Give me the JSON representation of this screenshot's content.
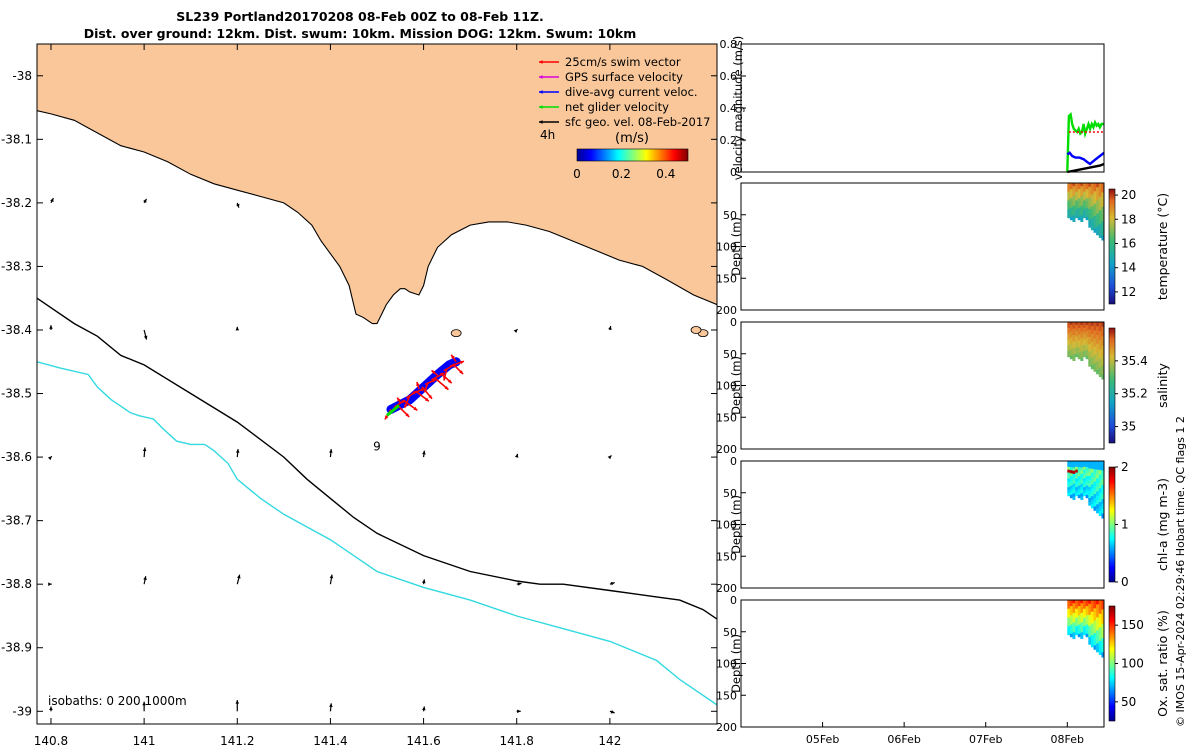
{
  "header": {
    "title_line1": "SL239 Portland20170208 08-Feb 00Z to 08-Feb 11Z.",
    "title_line2": "Dist. over ground: 12km. Dist. swum: 10km. Mission DOG: 12km. Swum: 10km"
  },
  "credit": "© IMOS 15-Apr-2024 02:29:46 Hobart time. QC flags 1  2",
  "colors": {
    "land": "#f9c79a",
    "isobath_200": "#000000",
    "isobath_1000": "#33d9e0",
    "swim": "#ff0000",
    "gps": "#dd00dd",
    "dive_avg": "#0000ff",
    "net": "#00dd00",
    "sfc_geo": "#000000"
  },
  "chart_data": [
    {
      "type": "scatter",
      "name": "map",
      "xlim": [
        140.77,
        142.23
      ],
      "ylim": [
        -39.02,
        -37.95
      ],
      "xticks": [
        140.8,
        141,
        141.2,
        141.4,
        141.6,
        141.8,
        142
      ],
      "xtick_labels": [
        "140.8",
        "141",
        "141.2",
        "141.4",
        "141.6",
        "141.8",
        "142"
      ],
      "yticks": [
        -38,
        -38.1,
        -38.2,
        -38.3,
        -38.4,
        -38.5,
        -38.6,
        -38.7,
        -38.8,
        -38.9,
        -39
      ],
      "ytick_labels": [
        "-38",
        "-38.1",
        "-38.2",
        "-38.3",
        "-38.4",
        "-38.5",
        "-38.6",
        "-38.7",
        "-38.8",
        "-38.9",
        "-39"
      ],
      "legend": [
        {
          "label": "25cm/s swim vector",
          "color": "#ff0000"
        },
        {
          "label": "GPS surface velocity",
          "color": "#dd00dd"
        },
        {
          "label": "dive-avg current veloc.",
          "color": "#0000ff"
        },
        {
          "label": "net glider velocity",
          "color": "#00dd00"
        },
        {
          "label": "sfc geo. vel. 08-Feb-2017",
          "color": "#000000"
        }
      ],
      "legend_position": "top-right",
      "colorbar": {
        "title": "(m/s)",
        "side_label": "4h",
        "ticks": [
          "0",
          "0.2",
          "0.4"
        ],
        "range": [
          0,
          0.5
        ]
      },
      "annotation": "9",
      "isobaths_label": "isobaths: 0   200   1000m",
      "coastline": [
        [
          140.77,
          -38.055
        ],
        [
          140.8,
          -38.06
        ],
        [
          140.85,
          -38.07
        ],
        [
          140.9,
          -38.09
        ],
        [
          140.95,
          -38.11
        ],
        [
          141.0,
          -38.12
        ],
        [
          141.05,
          -38.135
        ],
        [
          141.1,
          -38.155
        ],
        [
          141.15,
          -38.17
        ],
        [
          141.2,
          -38.18
        ],
        [
          141.25,
          -38.19
        ],
        [
          141.3,
          -38.2
        ],
        [
          141.33,
          -38.215
        ],
        [
          141.36,
          -38.235
        ],
        [
          141.38,
          -38.26
        ],
        [
          141.4,
          -38.28
        ],
        [
          141.42,
          -38.3
        ],
        [
          141.44,
          -38.33
        ],
        [
          141.45,
          -38.36
        ],
        [
          141.455,
          -38.375
        ],
        [
          141.47,
          -38.38
        ],
        [
          141.48,
          -38.385
        ],
        [
          141.49,
          -38.39
        ],
        [
          141.5,
          -38.39
        ],
        [
          141.51,
          -38.375
        ],
        [
          141.52,
          -38.36
        ],
        [
          141.535,
          -38.345
        ],
        [
          141.55,
          -38.335
        ],
        [
          141.56,
          -38.335
        ],
        [
          141.57,
          -38.34
        ],
        [
          141.59,
          -38.345
        ],
        [
          141.6,
          -38.33
        ],
        [
          141.61,
          -38.3
        ],
        [
          141.63,
          -38.27
        ],
        [
          141.66,
          -38.25
        ],
        [
          141.7,
          -38.235
        ],
        [
          141.74,
          -38.23
        ],
        [
          141.78,
          -38.23
        ],
        [
          141.82,
          -38.235
        ],
        [
          141.87,
          -38.245
        ],
        [
          141.92,
          -38.26
        ],
        [
          141.97,
          -38.275
        ],
        [
          142.02,
          -38.29
        ],
        [
          142.07,
          -38.3
        ],
        [
          142.12,
          -38.32
        ],
        [
          142.18,
          -38.345
        ],
        [
          142.23,
          -38.36
        ]
      ],
      "isobath_200": [
        [
          140.77,
          -38.35
        ],
        [
          140.85,
          -38.39
        ],
        [
          140.9,
          -38.41
        ],
        [
          140.95,
          -38.44
        ],
        [
          141.0,
          -38.455
        ],
        [
          141.1,
          -38.5
        ],
        [
          141.2,
          -38.545
        ],
        [
          141.3,
          -38.6
        ],
        [
          141.35,
          -38.635
        ],
        [
          141.4,
          -38.665
        ],
        [
          141.45,
          -38.695
        ],
        [
          141.5,
          -38.72
        ],
        [
          141.6,
          -38.755
        ],
        [
          141.7,
          -38.78
        ],
        [
          141.8,
          -38.795
        ],
        [
          141.85,
          -38.8
        ],
        [
          141.9,
          -38.8
        ],
        [
          142.0,
          -38.81
        ],
        [
          142.05,
          -38.815
        ],
        [
          142.1,
          -38.82
        ],
        [
          142.15,
          -38.825
        ],
        [
          142.2,
          -38.84
        ],
        [
          142.23,
          -38.855
        ]
      ],
      "isobath_1000": [
        [
          140.77,
          -38.45
        ],
        [
          140.82,
          -38.46
        ],
        [
          140.88,
          -38.47
        ],
        [
          140.9,
          -38.49
        ],
        [
          140.93,
          -38.51
        ],
        [
          140.95,
          -38.52
        ],
        [
          140.97,
          -38.53
        ],
        [
          140.99,
          -38.535
        ],
        [
          141.02,
          -38.54
        ],
        [
          141.04,
          -38.555
        ],
        [
          141.07,
          -38.575
        ],
        [
          141.1,
          -38.58
        ],
        [
          141.13,
          -38.58
        ],
        [
          141.15,
          -38.59
        ],
        [
          141.18,
          -38.61
        ],
        [
          141.2,
          -38.635
        ],
        [
          141.25,
          -38.665
        ],
        [
          141.3,
          -38.69
        ],
        [
          141.35,
          -38.71
        ],
        [
          141.4,
          -38.73
        ],
        [
          141.45,
          -38.755
        ],
        [
          141.5,
          -38.78
        ],
        [
          141.6,
          -38.805
        ],
        [
          141.7,
          -38.825
        ],
        [
          141.8,
          -38.85
        ],
        [
          141.9,
          -38.87
        ],
        [
          142.0,
          -38.89
        ],
        [
          142.1,
          -38.92
        ],
        [
          142.15,
          -38.95
        ],
        [
          142.23,
          -38.99
        ]
      ],
      "glider_track": [
        [
          141.53,
          -38.525
        ],
        [
          141.57,
          -38.51
        ],
        [
          141.6,
          -38.49
        ],
        [
          141.63,
          -38.47
        ],
        [
          141.655,
          -38.455
        ],
        [
          141.67,
          -38.45
        ]
      ],
      "islands": [
        [
          142.2,
          -38.405
        ],
        [
          142.185,
          -38.4
        ],
        [
          141.67,
          -38.405
        ]
      ],
      "geo_vectors": [
        {
          "lon": 140.8,
          "lat": -38.2,
          "u": 0.03,
          "v": 0.06
        },
        {
          "lon": 141.0,
          "lat": -38.2,
          "u": 0.03,
          "v": 0.05
        },
        {
          "lon": 141.2,
          "lat": -38.2,
          "u": 0.02,
          "v": -0.06
        },
        {
          "lon": 140.8,
          "lat": -38.4,
          "u": 0.0,
          "v": 0.06
        },
        {
          "lon": 141.0,
          "lat": -38.4,
          "u": 0.03,
          "v": -0.12
        },
        {
          "lon": 141.2,
          "lat": -38.4,
          "u": 0.0,
          "v": 0.04
        },
        {
          "lon": 141.8,
          "lat": -38.4,
          "u": 0.01,
          "v": 0.01
        },
        {
          "lon": 142.0,
          "lat": -38.4,
          "u": 0.01,
          "v": 0.05
        },
        {
          "lon": 140.8,
          "lat": -38.6,
          "u": 0.01,
          "v": 0.01
        },
        {
          "lon": 141.0,
          "lat": -38.6,
          "u": 0.01,
          "v": 0.12
        },
        {
          "lon": 141.2,
          "lat": -38.6,
          "u": 0.01,
          "v": 0.1
        },
        {
          "lon": 141.4,
          "lat": -38.6,
          "u": 0.01,
          "v": 0.1
        },
        {
          "lon": 141.6,
          "lat": -38.6,
          "u": 0.01,
          "v": 0.08
        },
        {
          "lon": 141.8,
          "lat": -38.6,
          "u": 0.01,
          "v": 0.04
        },
        {
          "lon": 142.0,
          "lat": -38.6,
          "u": 0.02,
          "v": 0.02
        },
        {
          "lon": 140.8,
          "lat": -38.8,
          "u": 0.01,
          "v": 0.0
        },
        {
          "lon": 141.0,
          "lat": -38.8,
          "u": 0.02,
          "v": 0.1
        },
        {
          "lon": 141.2,
          "lat": -38.8,
          "u": 0.03,
          "v": 0.12
        },
        {
          "lon": 141.4,
          "lat": -38.8,
          "u": 0.02,
          "v": 0.12
        },
        {
          "lon": 141.6,
          "lat": -38.8,
          "u": 0.01,
          "v": 0.06
        },
        {
          "lon": 141.8,
          "lat": -38.8,
          "u": 0.06,
          "v": 0.01
        },
        {
          "lon": 142.0,
          "lat": -38.8,
          "u": 0.06,
          "v": 0.02
        },
        {
          "lon": 140.8,
          "lat": -39.0,
          "u": 0.0,
          "v": 0.06
        },
        {
          "lon": 141.0,
          "lat": -39.0,
          "u": 0.0,
          "v": 0.12
        },
        {
          "lon": 141.2,
          "lat": -39.0,
          "u": 0.0,
          "v": 0.14
        },
        {
          "lon": 141.4,
          "lat": -39.0,
          "u": 0.01,
          "v": 0.1
        },
        {
          "lon": 141.6,
          "lat": -39.0,
          "u": 0.01,
          "v": 0.06
        },
        {
          "lon": 141.8,
          "lat": -39.0,
          "u": 0.05,
          "v": 0.0
        },
        {
          "lon": 142.0,
          "lat": -39.0,
          "u": 0.06,
          "v": -0.02
        }
      ]
    },
    {
      "type": "line",
      "name": "velocity",
      "ylabel": "velocity magnitude (m/s)",
      "ylim": [
        0,
        0.8
      ],
      "yticks": [
        0,
        0.2,
        0.4,
        0.6,
        0.8
      ],
      "ytick_labels": [
        "0",
        "0.2",
        "0.4",
        "0.6",
        "0.8"
      ],
      "xlim": [
        4.0,
        8.45
      ],
      "series": [
        {
          "color": "#00dd00",
          "x": [
            8.0,
            8.02,
            8.04,
            8.06,
            8.08,
            8.1,
            8.12,
            8.14,
            8.16,
            8.18,
            8.2,
            8.22,
            8.24,
            8.26,
            8.28,
            8.3,
            8.32,
            8.34,
            8.36,
            8.38,
            8.4,
            8.42,
            8.45
          ],
          "y": [
            0.0,
            0.35,
            0.36,
            0.3,
            0.27,
            0.26,
            0.25,
            0.27,
            0.24,
            0.25,
            0.3,
            0.24,
            0.27,
            0.3,
            0.27,
            0.3,
            0.28,
            0.31,
            0.29,
            0.3,
            0.28,
            0.3,
            0.3
          ]
        },
        {
          "color": "#ff0000",
          "x": [
            8.02,
            8.1,
            8.2,
            8.3,
            8.4,
            8.45
          ],
          "y": [
            0.25,
            0.25,
            0.25,
            0.25,
            0.25,
            0.25
          ]
        },
        {
          "color": "#0000ff",
          "x": [
            8.0,
            8.03,
            8.06,
            8.1,
            8.15,
            8.2,
            8.25,
            8.28,
            8.3,
            8.35,
            8.4,
            8.45
          ],
          "y": [
            0.11,
            0.12,
            0.1,
            0.09,
            0.09,
            0.08,
            0.06,
            0.05,
            0.06,
            0.08,
            0.1,
            0.12
          ]
        },
        {
          "color": "#000000",
          "x": [
            8.0,
            8.1,
            8.2,
            8.3,
            8.4,
            8.45
          ],
          "y": [
            0.0,
            0.01,
            0.02,
            0.03,
            0.04,
            0.05
          ]
        }
      ]
    },
    {
      "type": "heatmap",
      "name": "temperature",
      "ylabel": "Depth (m)",
      "colorbar_label": "temperature (°C)",
      "yticks": [
        50,
        100,
        150,
        200
      ],
      "ytick_labels": [
        "50",
        "100",
        "150",
        "200"
      ],
      "cbar_range": [
        11,
        20.5
      ],
      "cbar_ticks": [
        12,
        14,
        16,
        18,
        20
      ],
      "cbar_tick_labels": [
        "12",
        "14",
        "16",
        "18",
        "20"
      ],
      "data_x": [
        8.0,
        8.45
      ],
      "data_depth": [
        0,
        95
      ]
    },
    {
      "type": "heatmap",
      "name": "salinity",
      "ylabel": "Depth (m)",
      "colorbar_label": "salinity",
      "yticks": [
        0,
        50,
        100,
        150,
        200
      ],
      "ytick_labels": [
        "0",
        "50",
        "100",
        "150",
        "200"
      ],
      "cbar_range": [
        34.9,
        35.6
      ],
      "cbar_ticks": [
        35,
        35.2,
        35.4
      ],
      "cbar_tick_labels": [
        "35",
        "35.2",
        "35.4"
      ],
      "data_x": [
        8.0,
        8.45
      ],
      "data_depth": [
        0,
        95
      ]
    },
    {
      "type": "heatmap",
      "name": "chlorophyll",
      "ylabel": "Depth (m)",
      "colorbar_label": "chl-a (mg m-3)",
      "yticks": [
        0,
        50,
        100,
        150,
        200
      ],
      "ytick_labels": [
        "0",
        "50",
        "100",
        "150",
        "200"
      ],
      "cbar_range": [
        0,
        2
      ],
      "cbar_ticks": [
        0,
        1,
        2
      ],
      "cbar_tick_labels": [
        "0",
        "1",
        "2"
      ],
      "data_x": [
        8.0,
        8.45
      ],
      "data_depth": [
        0,
        95
      ]
    },
    {
      "type": "heatmap",
      "name": "oxygen",
      "ylabel": "Depth (m)",
      "colorbar_label": "Ox. sat. ratio (%)",
      "yticks": [
        0,
        50,
        100,
        150,
        200
      ],
      "ytick_labels": [
        "0",
        "50",
        "100",
        "150",
        "200"
      ],
      "xticks": [
        5,
        6,
        7,
        8
      ],
      "xtick_labels": [
        "05Feb",
        "06Feb",
        "07Feb",
        "08Feb"
      ],
      "cbar_range": [
        25,
        175
      ],
      "cbar_ticks": [
        50,
        100,
        150
      ],
      "cbar_tick_labels": [
        "50",
        "100",
        "150"
      ],
      "data_x": [
        8.0,
        8.45
      ],
      "data_depth": [
        0,
        95
      ]
    }
  ]
}
